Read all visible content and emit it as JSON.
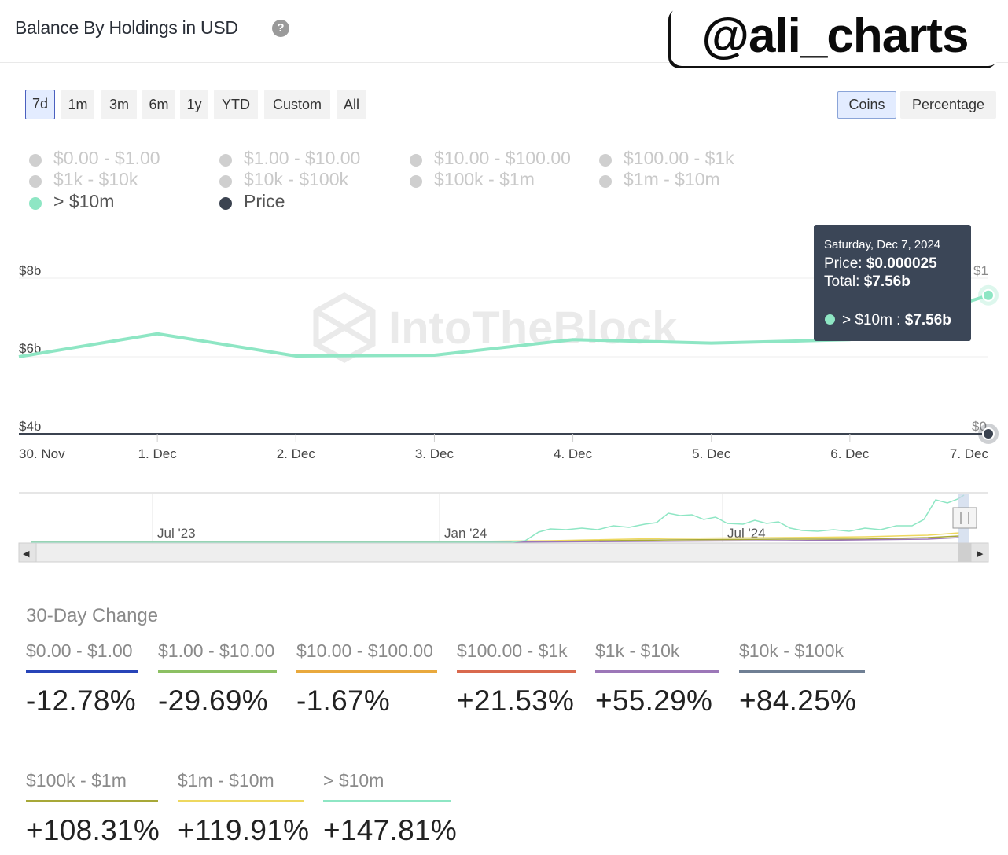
{
  "header": {
    "title": "Balance By Holdings in USD",
    "help_glyph": "?"
  },
  "watermark_handle": "@ali_charts",
  "brand_watermark": "IntoTheBlock",
  "range_buttons": [
    "7d",
    "1m",
    "3m",
    "6m",
    "1y",
    "YTD",
    "Custom",
    "All"
  ],
  "active_range": "7d",
  "mode_buttons": [
    "Coins",
    "Percentage"
  ],
  "active_mode": "Coins",
  "legend": [
    {
      "label": "$0.00 - $1.00",
      "enabled": false
    },
    {
      "label": "$1.00 - $10.00",
      "enabled": false
    },
    {
      "label": "$10.00 - $100.00",
      "enabled": false
    },
    {
      "label": "$100.00 - $1k",
      "enabled": false
    },
    {
      "label": "$1k - $10k",
      "enabled": false
    },
    {
      "label": "$10k - $100k",
      "enabled": false
    },
    {
      "label": "$100k - $1m",
      "enabled": false
    },
    {
      "label": "$1m - $10m",
      "enabled": false
    },
    {
      "label": "> $10m",
      "enabled": true,
      "color": "#8ee6c4"
    },
    {
      "label": "Price",
      "enabled": true,
      "color": "#3b4350"
    }
  ],
  "chart_data": {
    "type": "line",
    "x": [
      "30. Nov",
      "1. Dec",
      "2. Dec",
      "3. Dec",
      "4. Dec",
      "5. Dec",
      "6. Dec",
      "7. Dec"
    ],
    "y_ticks": [
      "$4b",
      "$6b",
      "$8b"
    ],
    "ylim": [
      4,
      8
    ],
    "right_ticks": [
      "$0",
      "$1"
    ],
    "series": [
      {
        "name": "> $10m",
        "color": "#8ee6c4",
        "values": [
          5.98,
          6.57,
          6.0,
          6.02,
          6.42,
          6.33,
          6.42,
          7.56
        ]
      },
      {
        "name": "Price",
        "color": "#3b4350",
        "values": [
          2.5e-05,
          2.5e-05,
          2.5e-05,
          2.5e-05,
          2.5e-05,
          2.5e-05,
          2.5e-05,
          2.5e-05
        ]
      }
    ],
    "tooltip": {
      "date": "Saturday, Dec 7, 2024",
      "price_label": "Price:",
      "price_value": "$0.000025",
      "total_label": "Total:",
      "total_value": "$7.56b",
      "series_label": "> $10m :",
      "series_value": "$7.56b"
    },
    "navigator_labels": [
      "Jul '23",
      "Jan '24",
      "Jul '24"
    ],
    "arrow_left": "◀",
    "arrow_right": "▶"
  },
  "change_section": {
    "title": "30-Day Change",
    "items": [
      {
        "label": "$0.00 - $1.00",
        "value": "-12.78%",
        "color": "#2744b8"
      },
      {
        "label": "$1.00 - $10.00",
        "value": "-29.69%",
        "color": "#8cc063"
      },
      {
        "label": "$10.00 - $100.00",
        "value": "-1.67%",
        "color": "#e9a93d"
      },
      {
        "label": "$100.00 - $1k",
        "value": "+21.53%",
        "color": "#d9694e"
      },
      {
        "label": "$1k - $10k",
        "value": "+55.29%",
        "color": "#9c77b8"
      },
      {
        "label": "$10k - $100k",
        "value": "+84.25%",
        "color": "#6f7f94"
      },
      {
        "label": "$100k - $1m",
        "value": "+108.31%",
        "color": "#a7a838"
      },
      {
        "label": "$1m - $10m",
        "value": "+119.91%",
        "color": "#eed85f"
      },
      {
        "label": "> $10m",
        "value": "+147.81%",
        "color": "#8ee6c4"
      }
    ]
  }
}
